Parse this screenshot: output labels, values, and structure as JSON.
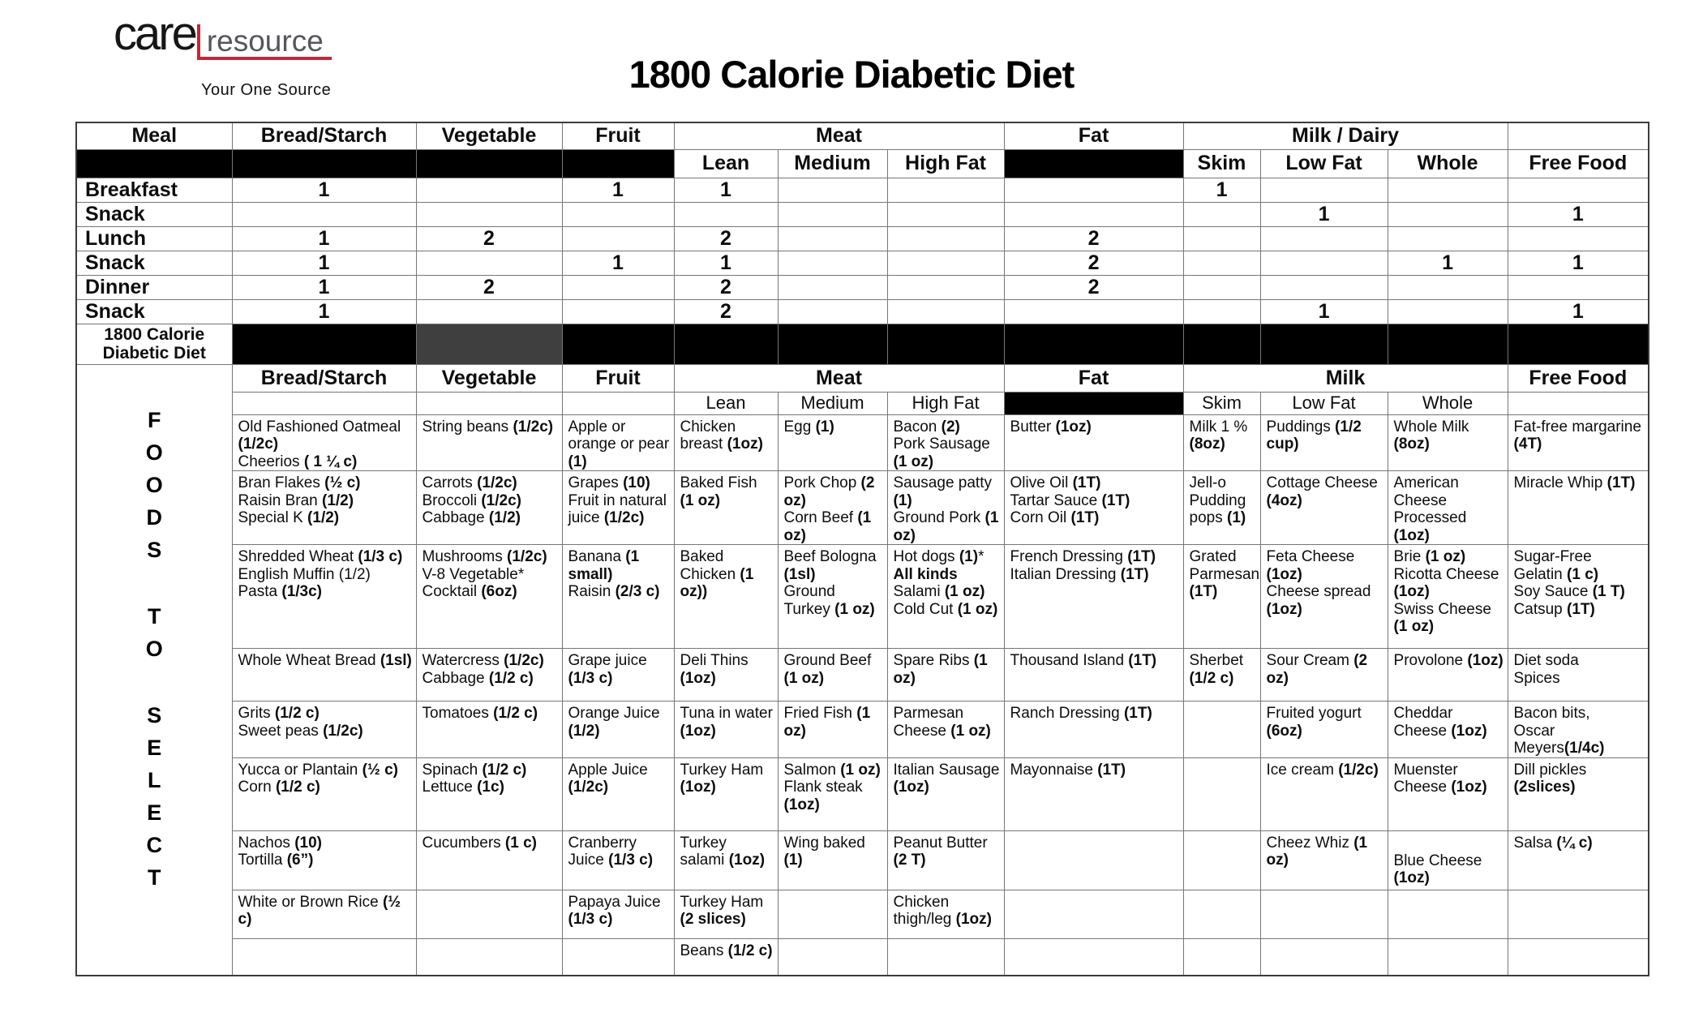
{
  "logo": {
    "care": "care",
    "resource": "resource",
    "tagline": "Your One Source"
  },
  "title": "1800 Calorie Diabetic Diet",
  "colors": {
    "accent_red": "#c22838",
    "bar_black": "#000000",
    "bar_gray": "#3f3f3f"
  },
  "plan": {
    "header": {
      "meal": "Meal",
      "bread": "Bread/Starch",
      "vegetable": "Vegetable",
      "fruit": "Fruit",
      "meat": "Meat",
      "fat": "Fat",
      "milk": "Milk / Dairy",
      "free": "Free Food",
      "lean": "Lean",
      "medium": "Medium",
      "high_fat": "High Fat",
      "skim": "Skim",
      "low_fat": "Low Fat",
      "whole": "Whole"
    },
    "rows": [
      {
        "meal": "Breakfast",
        "values": [
          "1",
          "",
          "1",
          "1",
          "",
          "",
          "",
          "1",
          "",
          "",
          ""
        ]
      },
      {
        "meal": "Snack",
        "values": [
          "",
          "",
          "",
          "",
          "",
          "",
          "",
          "",
          "1",
          "",
          "1"
        ]
      },
      {
        "meal": "Lunch",
        "values": [
          "1",
          "2",
          "",
          "2",
          "",
          "",
          "2",
          "",
          "",
          "",
          ""
        ]
      },
      {
        "meal": "Snack",
        "values": [
          "1",
          "",
          "1",
          "1",
          "",
          "",
          "2",
          "",
          "",
          "1",
          "1"
        ]
      },
      {
        "meal": "Dinner",
        "values": [
          "1",
          "2",
          "",
          "2",
          "",
          "",
          "2",
          "",
          "",
          "",
          ""
        ]
      },
      {
        "meal": "Snack",
        "values": [
          "1",
          "",
          "",
          "2",
          "",
          "",
          "",
          "",
          "1",
          "",
          "1"
        ]
      }
    ]
  },
  "section": {
    "line1": "1800 Calorie",
    "line2": "Diabetic Diet"
  },
  "foods": {
    "side_label": "FOODS TO SELECT",
    "header": {
      "bread": "Bread/Starch",
      "vegetable": "Vegetable",
      "fruit": "Fruit",
      "meat": "Meat",
      "fat": "Fat",
      "milk": "Milk",
      "free": "Free Food",
      "lean": "Lean",
      "medium": "Medium",
      "high_fat": "High Fat",
      "skim": "Skim",
      "low_fat": "Low Fat",
      "whole": "Whole"
    },
    "rows": [
      {
        "bread": [
          "Old Fashioned Oatmeal **(1/2c)**",
          "Cheerios **( 1 ¼ c)**"
        ],
        "vegetable": [
          "String beans **(1/2c)**"
        ],
        "fruit": [
          "Apple or orange or pear **(1)**"
        ],
        "lean": [
          "Chicken breast **(1oz)**"
        ],
        "medium": [
          "Egg **(1)**"
        ],
        "high_fat": [
          "Bacon **(2)**",
          "Pork Sausage **(1 oz)**"
        ],
        "fat": [
          "Butter **(1oz)**"
        ],
        "skim": [
          "Milk 1 % **(8oz)**"
        ],
        "low_fat": [
          "Puddings **(1/2 cup)**"
        ],
        "whole": [
          "Whole Milk **(8oz)**"
        ],
        "free": [
          "Fat-free margarine **(4T)**"
        ]
      },
      {
        "bread": [
          "Bran Flakes **(½ c)**",
          "Raisin Bran **(1/2)**",
          "Special K **(1/2)**"
        ],
        "vegetable": [
          "Carrots **(1/2c)**",
          "Broccoli **(1/2c)**",
          "Cabbage **(1/2)**"
        ],
        "fruit": [
          "Grapes **(10)**",
          "Fruit in natural juice **(1/2c)**"
        ],
        "lean": [
          "Baked Fish **(1 oz)**"
        ],
        "medium": [
          "Pork Chop **(2 oz)**",
          "Corn Beef **(1 oz)**"
        ],
        "high_fat": [
          "Sausage patty **(1)**",
          "Ground Pork **(1 oz)**"
        ],
        "fat": [
          "Olive Oil **(1T)**",
          "Tartar Sauce **(1T)**",
          "Corn Oil **(1T)**"
        ],
        "skim": [
          "Jell-o Pudding pops **(1)**"
        ],
        "low_fat": [
          "Cottage Cheese **(4oz)**"
        ],
        "whole": [
          "American Cheese Processed **(1oz)**"
        ],
        "free": [
          "Miracle Whip **(1T)**"
        ]
      },
      {
        "bread": [
          "Shredded Wheat **(1/3 c)**",
          "English Muffin (1/2)",
          "Pasta **(1/3c)**"
        ],
        "vegetable": [
          "Mushrooms **(1/2c)**",
          "V-8 Vegetable* Cocktail **(6oz)**"
        ],
        "fruit": [
          "Banana **(1 small)**",
          "Raisin **(2/3 c)**"
        ],
        "lean": [
          "Baked Chicken **(1 oz))**"
        ],
        "medium": [
          "Beef Bologna **(1sl)**",
          "Ground Turkey **(1 oz)**"
        ],
        "high_fat": [
          "Hot dogs **(1)***",
          "**All kinds**",
          "Salami **(1 oz)**",
          "Cold Cut **(1 oz)**"
        ],
        "fat": [
          "French Dressing **(1T)**",
          "Italian Dressing **(1T)**"
        ],
        "skim": [
          "Grated Parmesan **(1T)**"
        ],
        "low_fat": [
          "Feta Cheese **(1oz)**",
          "Cheese spread **(1oz)**"
        ],
        "whole": [
          "Brie **(1 oz)**",
          "Ricotta Cheese **(1oz)**",
          "Swiss Cheese **(1 oz)**"
        ],
        "free": [
          "Sugar-Free Gelatin **(1 c)**",
          "Soy Sauce **(1 T)**",
          "Catsup **(1T)**"
        ]
      },
      {
        "bread": [
          "Whole Wheat Bread **(1sl)**"
        ],
        "vegetable": [
          "Watercress **(1/2c)**",
          "Cabbage **(1/2 c)**"
        ],
        "fruit": [
          "Grape juice **(1/3 c)**"
        ],
        "lean": [
          "Deli Thins **(1oz)**"
        ],
        "medium": [
          "Ground Beef **(1 oz)**"
        ],
        "high_fat": [
          "Spare Ribs **(1 oz)**"
        ],
        "fat": [
          "Thousand Island **(1T)**"
        ],
        "skim": [
          "Sherbet **(1/2 c)**"
        ],
        "low_fat": [
          "Sour Cream **(2 oz)**"
        ],
        "whole": [
          "Provolone **(1oz)**"
        ],
        "free": [
          "Diet soda",
          "Spices"
        ]
      },
      {
        "bread": [
          "Grits **(1/2 c)**",
          "Sweet peas **(1/2c)**"
        ],
        "vegetable": [
          "Tomatoes **(1/2 c)**"
        ],
        "fruit": [
          "Orange Juice **(1/2)**"
        ],
        "lean": [
          "Tuna in water **(1oz)**"
        ],
        "medium": [
          "Fried Fish **(1 oz)**"
        ],
        "high_fat": [
          "Parmesan Cheese **(1 oz)**"
        ],
        "fat": [
          "Ranch Dressing **(1T)**"
        ],
        "skim": [],
        "low_fat": [
          "Fruited yogurt **(6oz)**"
        ],
        "whole": [
          "Cheddar Cheese **(1oz)**"
        ],
        "free": [
          "Bacon bits,",
          "Oscar Meyers**(1/4c)**"
        ]
      },
      {
        "bread": [
          "Yucca or Plantain **(½ c)**",
          "Corn **(1/2 c)**"
        ],
        "vegetable": [
          "Spinach **(1/2 c)**",
          "Lettuce **(1c)**"
        ],
        "fruit": [
          "Apple Juice **(1/2c)**"
        ],
        "lean": [
          "Turkey Ham **(1oz)**"
        ],
        "medium": [
          "Salmon **(1 oz)**",
          "Flank steak **(1oz)**"
        ],
        "high_fat": [
          "Italian Sausage **(1oz)**"
        ],
        "fat": [
          "Mayonnaise **(1T)**"
        ],
        "skim": [],
        "low_fat": [
          "Ice cream **(1/2c)**"
        ],
        "whole": [
          "Muenster Cheese **(1oz)**"
        ],
        "free": [
          "Dill pickles **(2slices)**"
        ]
      },
      {
        "bread": [
          "Nachos **(10)**",
          "Tortilla **(6”)**"
        ],
        "vegetable": [
          "Cucumbers **(1 c)**"
        ],
        "fruit": [
          "Cranberry Juice **(1/3 c)**"
        ],
        "lean": [
          "Turkey salami **(1oz)**"
        ],
        "medium": [
          "Wing baked **(1)**"
        ],
        "high_fat": [
          "Peanut Butter **(2 T)**"
        ],
        "fat": [],
        "skim": [],
        "low_fat": [
          "Cheez Whiz **(1 oz)**"
        ],
        "whole": [
          "",
          "Blue Cheese **(1oz)**"
        ],
        "free": [
          "Salsa **(¼ c)**"
        ]
      },
      {
        "bread": [
          "White or Brown Rice **(½ c)**"
        ],
        "vegetable": [],
        "fruit": [
          "Papaya Juice **(1/3 c)**"
        ],
        "lean": [
          "Turkey Ham **(2 slices)**"
        ],
        "medium": [],
        "high_fat": [
          "Chicken thigh/leg **(1oz)**"
        ],
        "fat": [],
        "skim": [],
        "low_fat": [],
        "whole": [],
        "free": []
      },
      {
        "bread": [],
        "vegetable": [],
        "fruit": [],
        "lean": [
          "Beans **(1/2 c)**"
        ],
        "medium": [],
        "high_fat": [],
        "fat": [],
        "skim": [],
        "low_fat": [],
        "whole": [],
        "free": []
      }
    ]
  }
}
